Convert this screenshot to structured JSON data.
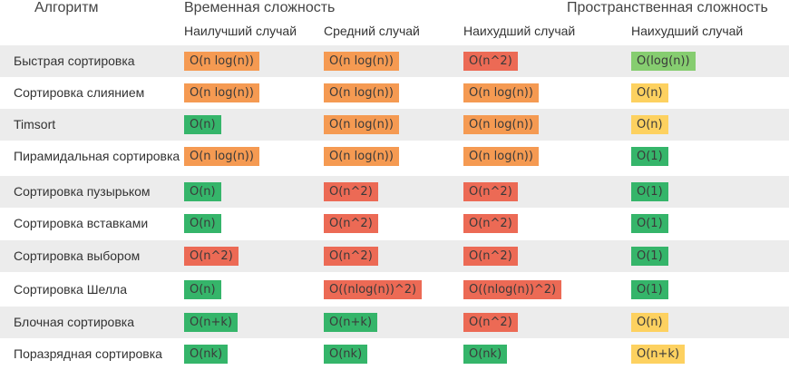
{
  "colors": {
    "orange": "#f59a52",
    "red": "#ec6a55",
    "green": "#35b56a",
    "light_green": "#86cd70",
    "yellow": "#fdd160",
    "stripe": "#ececec"
  },
  "header": {
    "algorithm": "Алгоритм",
    "time": "Временная сложность",
    "space": "Пространственная сложность"
  },
  "subheader": {
    "best": "Наилучший случай",
    "average": "Средний случай",
    "worst": "Наихудший случай",
    "space_worst": "Наихудший случай"
  },
  "rows": [
    {
      "name": "Быстрая сортировка",
      "best": {
        "text": "O(n log(n))",
        "color": "#f59a52"
      },
      "average": {
        "text": "O(n log(n))",
        "color": "#f59a52"
      },
      "worst": {
        "text": "O(n^2)",
        "color": "#ec6a55"
      },
      "space": {
        "text": "O(log(n))",
        "color": "#86cd70"
      }
    },
    {
      "name": "Сортировка слиянием",
      "best": {
        "text": "O(n log(n))",
        "color": "#f59a52"
      },
      "average": {
        "text": "O(n log(n))",
        "color": "#f59a52"
      },
      "worst": {
        "text": "O(n log(n))",
        "color": "#f59a52"
      },
      "space": {
        "text": "O(n)",
        "color": "#fdd160"
      }
    },
    {
      "name": "Timsort",
      "best": {
        "text": "O(n)",
        "color": "#35b56a"
      },
      "average": {
        "text": "O(n log(n))",
        "color": "#f59a52"
      },
      "worst": {
        "text": "O(n log(n))",
        "color": "#f59a52"
      },
      "space": {
        "text": "O(n)",
        "color": "#fdd160"
      }
    },
    {
      "name": "Пирамидальная сортировка",
      "best": {
        "text": "O(n log(n))",
        "color": "#f59a52"
      },
      "average": {
        "text": "O(n log(n))",
        "color": "#f59a52"
      },
      "worst": {
        "text": "O(n log(n))",
        "color": "#f59a52"
      },
      "space": {
        "text": "O(1)",
        "color": "#35b56a"
      }
    },
    {
      "name": "Сортировка пузырьком",
      "best": {
        "text": "O(n)",
        "color": "#35b56a"
      },
      "average": {
        "text": "O(n^2)",
        "color": "#ec6a55"
      },
      "worst": {
        "text": "O(n^2)",
        "color": "#ec6a55"
      },
      "space": {
        "text": "O(1)",
        "color": "#35b56a"
      }
    },
    {
      "name": "Сортировка вставками",
      "best": {
        "text": "O(n)",
        "color": "#35b56a"
      },
      "average": {
        "text": "O(n^2)",
        "color": "#ec6a55"
      },
      "worst": {
        "text": "O(n^2)",
        "color": "#ec6a55"
      },
      "space": {
        "text": "O(1)",
        "color": "#35b56a"
      }
    },
    {
      "name": "Сортировка выбором",
      "best": {
        "text": "O(n^2)",
        "color": "#ec6a55"
      },
      "average": {
        "text": "O(n^2)",
        "color": "#ec6a55"
      },
      "worst": {
        "text": "O(n^2)",
        "color": "#ec6a55"
      },
      "space": {
        "text": "O(1)",
        "color": "#35b56a"
      }
    },
    {
      "name": "Сортировка Шелла",
      "best": {
        "text": "O(n)",
        "color": "#35b56a"
      },
      "average": {
        "text": "O((nlog(n))^2)",
        "color": "#ec6a55"
      },
      "worst": {
        "text": "O((nlog(n))^2)",
        "color": "#ec6a55"
      },
      "space": {
        "text": "O(1)",
        "color": "#35b56a"
      }
    },
    {
      "name": "Блочная сортировка",
      "best": {
        "text": "O(n+k)",
        "color": "#35b56a"
      },
      "average": {
        "text": "O(n+k)",
        "color": "#35b56a"
      },
      "worst": {
        "text": "O(n^2)",
        "color": "#ec6a55"
      },
      "space": {
        "text": "O(n)",
        "color": "#fdd160"
      }
    },
    {
      "name": "Поразрядная сортировка",
      "best": {
        "text": "O(nk)",
        "color": "#35b56a"
      },
      "average": {
        "text": "O(nk)",
        "color": "#35b56a"
      },
      "worst": {
        "text": "O(nk)",
        "color": "#35b56a"
      },
      "space": {
        "text": "O(n+k)",
        "color": "#fdd160"
      }
    }
  ]
}
